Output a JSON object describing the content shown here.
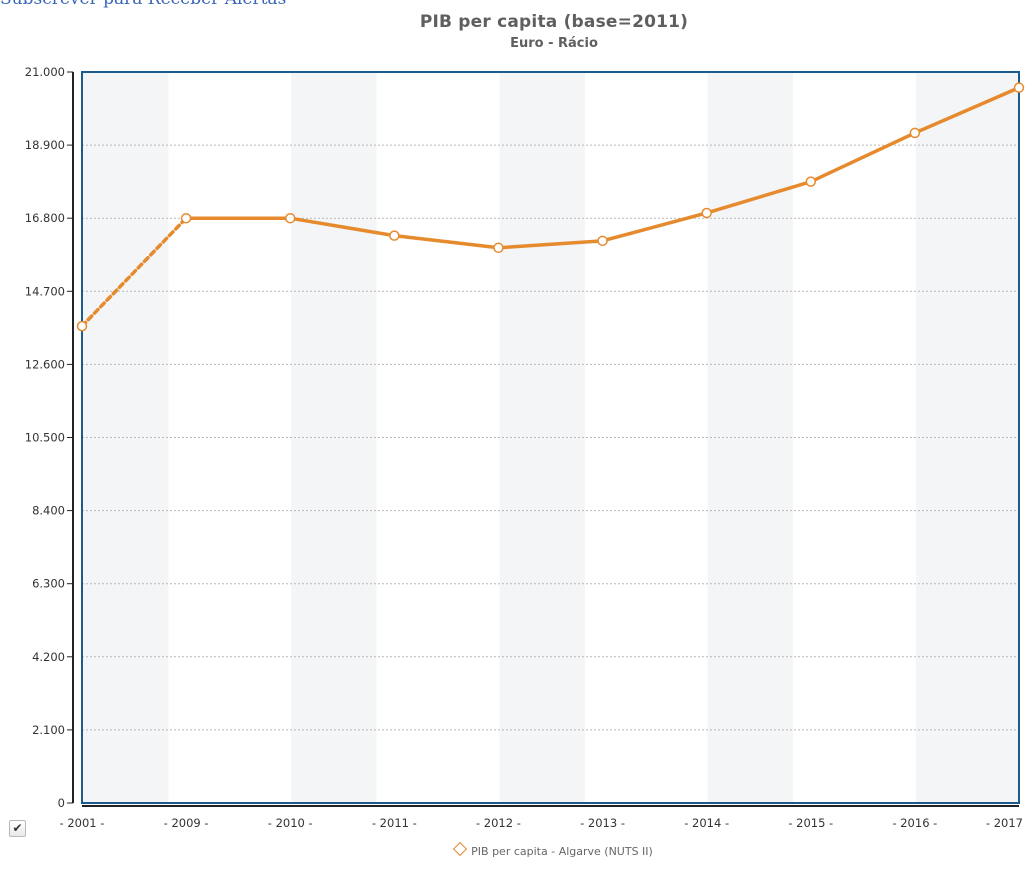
{
  "page": {
    "top_link": "Subscrever para Receber Alertas"
  },
  "chart_data": {
    "type": "line",
    "title": "PIB per capita (base=2011)",
    "subtitle": "Euro - Rácio",
    "xlabel": "",
    "ylabel": "",
    "categories": [
      "2001",
      "2009",
      "2010",
      "2011",
      "2012",
      "2013",
      "2014",
      "2015",
      "2016",
      "2017"
    ],
    "series": [
      {
        "name": "PIB per capita - Algarve (NUTS II)",
        "values": [
          13700,
          16800,
          16800,
          16300,
          15950,
          16150,
          16950,
          17850,
          19250,
          20550
        ],
        "color": "#e68a2e",
        "dashed_segments": [
          [
            0,
            1
          ]
        ]
      }
    ],
    "ylim": [
      0,
      21000
    ],
    "yticks": [
      0,
      2100,
      4200,
      6300,
      8400,
      10500,
      12600,
      14700,
      16800,
      18900,
      21000
    ],
    "ytick_labels": [
      "0",
      "2.100",
      "4.200",
      "6.300",
      "8.400",
      "10.500",
      "12.600",
      "14.700",
      "16.800",
      "18.900",
      "21.000"
    ],
    "xtick_labels": [
      "- 2001 -",
      "- 2009 -",
      "- 2010 -",
      "- 2011 -",
      "- 2012 -",
      "- 2013 -",
      "- 2014 -",
      "- 2015 -",
      "- 2016 -",
      "- 2017"
    ],
    "grid": true,
    "legend_position": "bottom-center",
    "frame_color": "#1c5b8c",
    "band_color": "#f4f5f6"
  },
  "legend": {
    "checkbox_mark": "✔",
    "label": "PIB per capita - Algarve (NUTS II)"
  }
}
